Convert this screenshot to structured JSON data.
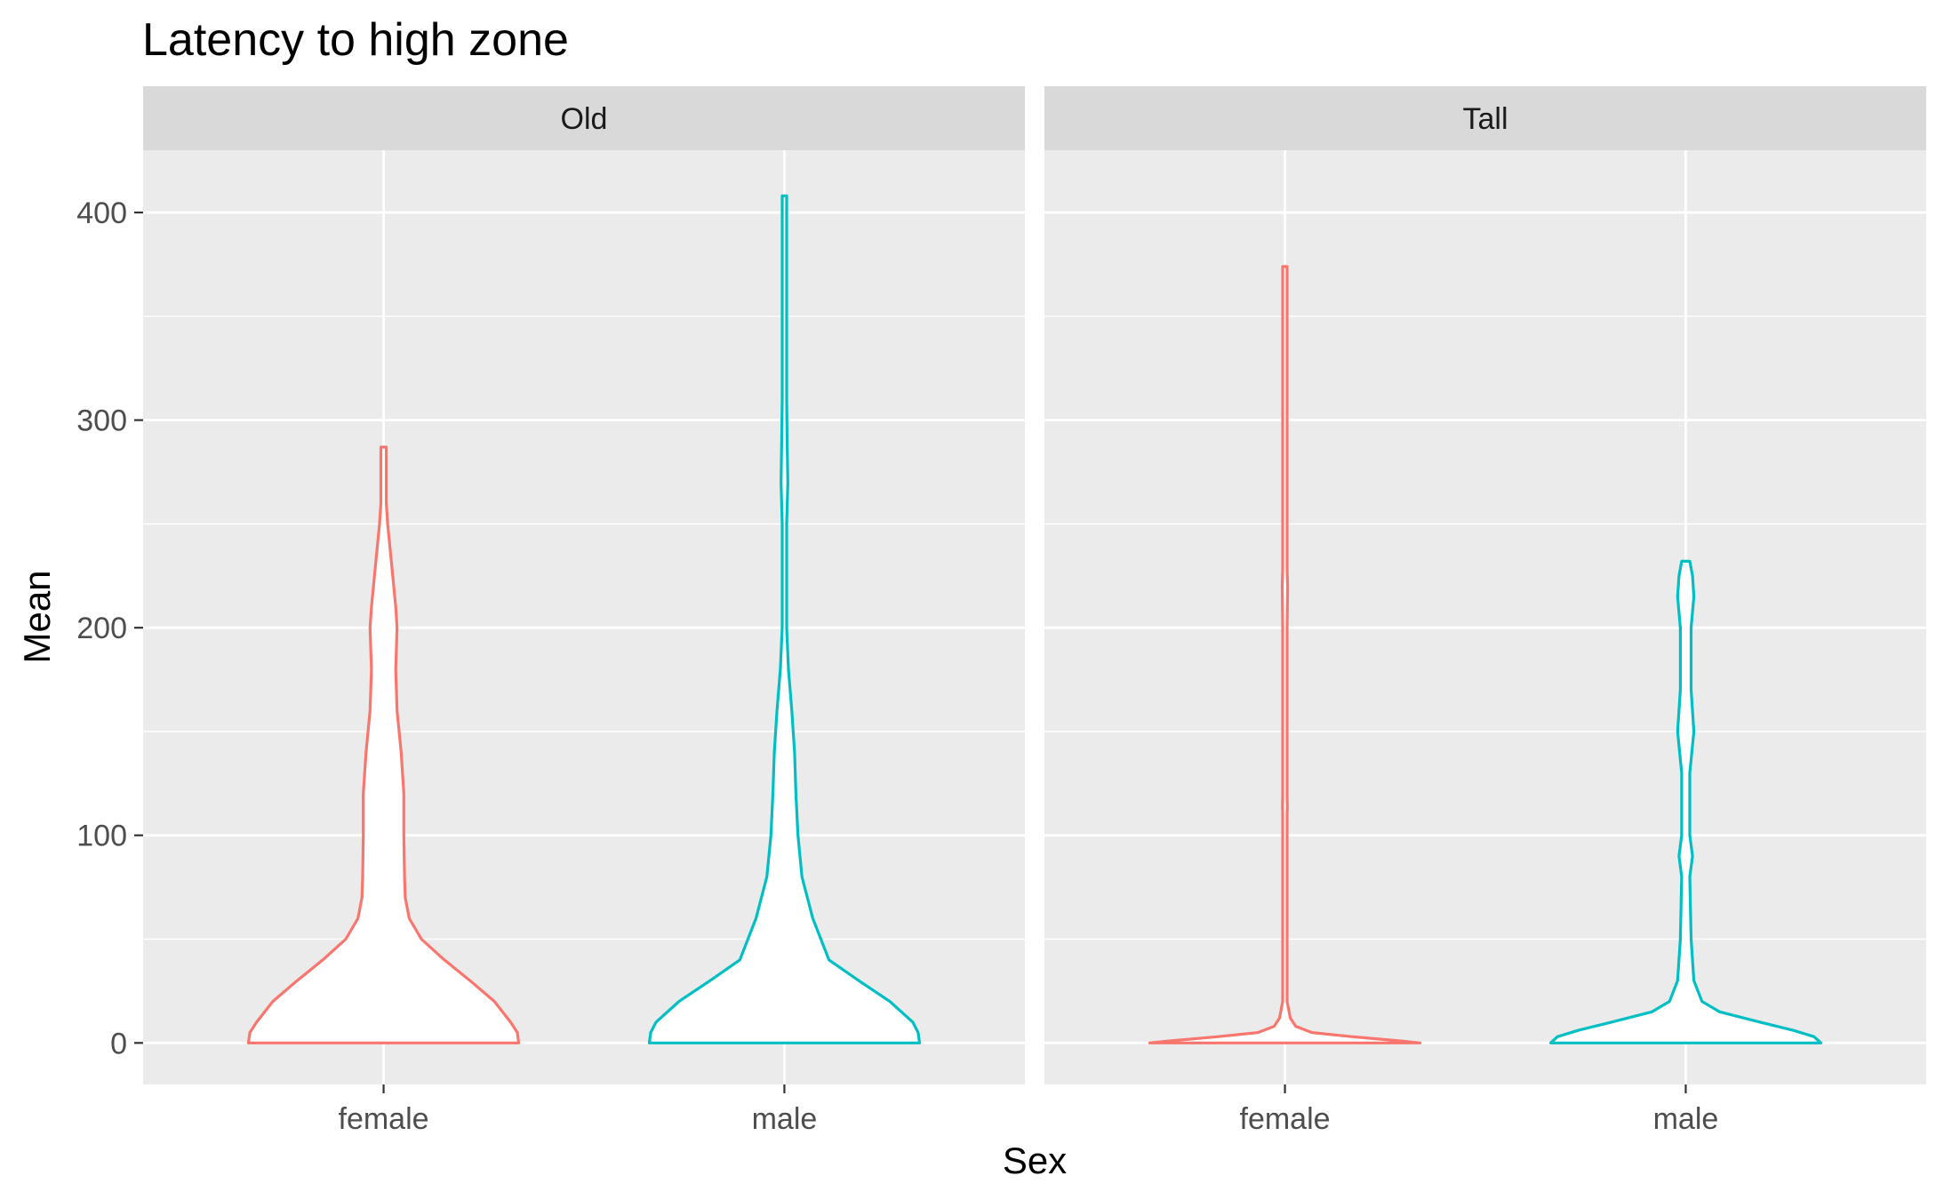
{
  "chart_data": {
    "type": "violin",
    "title": "Latency to high zone",
    "xlabel": "Sex",
    "ylabel": "Mean",
    "ylim": [
      -20,
      430
    ],
    "y_ticks": [
      0,
      100,
      200,
      300,
      400
    ],
    "categories": [
      "female",
      "male"
    ],
    "grid": true,
    "legend": "none",
    "colors": {
      "female": "#F8766D",
      "male": "#00BFC4",
      "panel_bg": "#EBEBEB",
      "strip_bg": "#D9D9D9",
      "grid": "#FFFFFF"
    },
    "panels": [
      {
        "label": "Old",
        "violins": [
          {
            "category": "female",
            "min": 0,
            "max": 287,
            "profile": [
              [
                0,
                1.0
              ],
              [
                5,
                0.99
              ],
              [
                10,
                0.94
              ],
              [
                20,
                0.82
              ],
              [
                30,
                0.64
              ],
              [
                40,
                0.45
              ],
              [
                50,
                0.28
              ],
              [
                60,
                0.19
              ],
              [
                70,
                0.16
              ],
              [
                80,
                0.155
              ],
              [
                100,
                0.15
              ],
              [
                120,
                0.15
              ],
              [
                140,
                0.13
              ],
              [
                160,
                0.1
              ],
              [
                180,
                0.09
              ],
              [
                200,
                0.1
              ],
              [
                210,
                0.09
              ],
              [
                230,
                0.06
              ],
              [
                250,
                0.03
              ],
              [
                260,
                0.02
              ],
              [
                287,
                0.02
              ]
            ]
          },
          {
            "category": "male",
            "min": 0,
            "max": 408,
            "profile": [
              [
                0,
                1.0
              ],
              [
                5,
                0.99
              ],
              [
                10,
                0.95
              ],
              [
                20,
                0.78
              ],
              [
                30,
                0.55
              ],
              [
                40,
                0.33
              ],
              [
                60,
                0.21
              ],
              [
                80,
                0.13
              ],
              [
                100,
                0.1
              ],
              [
                120,
                0.085
              ],
              [
                140,
                0.075
              ],
              [
                160,
                0.055
              ],
              [
                180,
                0.03
              ],
              [
                200,
                0.015
              ],
              [
                250,
                0.015
              ],
              [
                270,
                0.025
              ],
              [
                290,
                0.02
              ],
              [
                310,
                0.01
              ],
              [
                340,
                0.015
              ],
              [
                360,
                0.01
              ],
              [
                380,
                0.01
              ],
              [
                400,
                0.015
              ],
              [
                408,
                0.015
              ]
            ]
          }
        ]
      },
      {
        "label": "Tall",
        "violins": [
          {
            "category": "female",
            "min": 0,
            "max": 374,
            "profile": [
              [
                0,
                1.0
              ],
              [
                1,
                0.85
              ],
              [
                3,
                0.5
              ],
              [
                5,
                0.2
              ],
              [
                8,
                0.08
              ],
              [
                12,
                0.04
              ],
              [
                20,
                0.012
              ],
              [
                30,
                0.006
              ],
              [
                40,
                0.004
              ],
              [
                48,
                0.012
              ],
              [
                55,
                0.004
              ],
              [
                62,
                0.005
              ],
              [
                67,
                0.015
              ],
              [
                72,
                0.004
              ],
              [
                90,
                0.003
              ],
              [
                110,
                0.004
              ],
              [
                114,
                0.018
              ],
              [
                118,
                0.004
              ],
              [
                140,
                0.003
              ],
              [
                152,
                0.01
              ],
              [
                156,
                0.004
              ],
              [
                164,
                0.01
              ],
              [
                170,
                0.003
              ],
              [
                200,
                0.003
              ],
              [
                220,
                0.02
              ],
              [
                228,
                0.003
              ],
              [
                300,
                0.003
              ],
              [
                370,
                0.003
              ],
              [
                374,
                0.012
              ]
            ]
          },
          {
            "category": "male",
            "min": 0,
            "max": 232,
            "profile": [
              [
                0,
                1.0
              ],
              [
                3,
                0.95
              ],
              [
                6,
                0.8
              ],
              [
                10,
                0.55
              ],
              [
                15,
                0.25
              ],
              [
                20,
                0.12
              ],
              [
                30,
                0.06
              ],
              [
                50,
                0.04
              ],
              [
                80,
                0.03
              ],
              [
                90,
                0.05
              ],
              [
                100,
                0.03
              ],
              [
                130,
                0.03
              ],
              [
                150,
                0.06
              ],
              [
                170,
                0.04
              ],
              [
                200,
                0.04
              ],
              [
                215,
                0.06
              ],
              [
                225,
                0.05
              ],
              [
                232,
                0.03
              ]
            ]
          }
        ]
      }
    ]
  }
}
